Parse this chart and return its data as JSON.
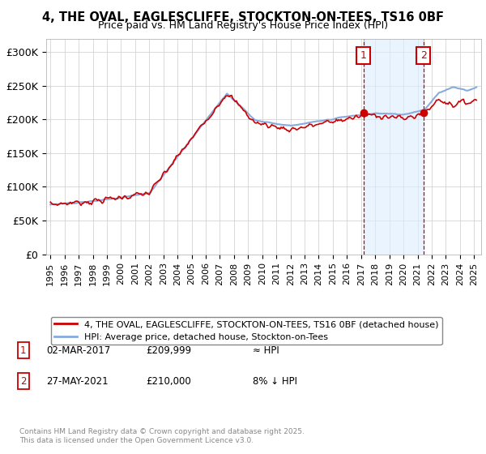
{
  "title_line1": "4, THE OVAL, EAGLESCLIFFE, STOCKTON-ON-TEES, TS16 0BF",
  "title_line2": "Price paid vs. HM Land Registry's House Price Index (HPI)",
  "legend_line1": "4, THE OVAL, EAGLESCLIFFE, STOCKTON-ON-TEES, TS16 0BF (detached house)",
  "legend_line2": "HPI: Average price, detached house, Stockton-on-Tees",
  "annotation1_label": "1",
  "annotation1_date": "02-MAR-2017",
  "annotation1_price": "£209,999",
  "annotation1_hpi": "≈ HPI",
  "annotation2_label": "2",
  "annotation2_date": "27-MAY-2021",
  "annotation2_price": "£210,000",
  "annotation2_hpi": "8% ↓ HPI",
  "copyright": "Contains HM Land Registry data © Crown copyright and database right 2025.\nThis data is licensed under the Open Government Licence v3.0.",
  "sale1_year": 2017.17,
  "sale1_price": 209999,
  "sale2_year": 2021.41,
  "sale2_price": 210000,
  "line_color_red": "#cc0000",
  "line_color_blue": "#88aadd",
  "annotation_box_color": "#cc0000",
  "vline_color": "#cc0000",
  "shade_color": "#ddeeff",
  "ylim": [
    0,
    320000
  ],
  "yticks": [
    0,
    50000,
    100000,
    150000,
    200000,
    250000,
    300000
  ],
  "xlim_start": 1994.7,
  "xlim_end": 2025.5,
  "background_color": "#ffffff",
  "grid_color": "#cccccc"
}
